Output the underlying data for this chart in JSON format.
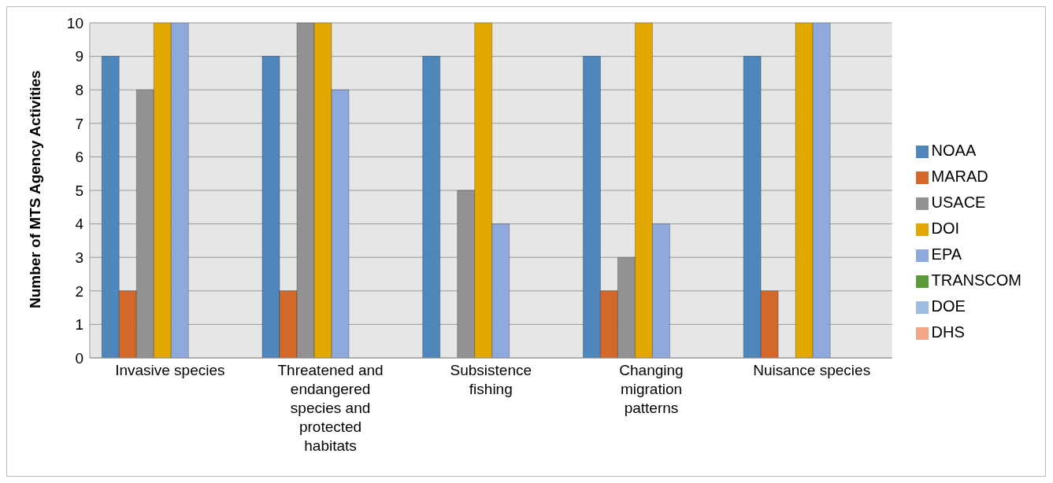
{
  "chart_data": {
    "type": "bar",
    "ylabel": "Number of MTS Agency Activities",
    "categories": [
      "Invasive species",
      "Threatened and endangered species and protected habitats",
      "Subsistence fishing",
      "Changing migration patterns",
      "Nuisance species"
    ],
    "series": [
      {
        "name": "NOAA",
        "color": "#4f86bb",
        "values": [
          9,
          9,
          9,
          9,
          9
        ]
      },
      {
        "name": "MARAD",
        "color": "#d2692a",
        "values": [
          2,
          2,
          0,
          2,
          2
        ]
      },
      {
        "name": "USACE",
        "color": "#929292",
        "values": [
          8,
          10,
          5,
          3,
          0
        ]
      },
      {
        "name": "DOI",
        "color": "#e2a800",
        "values": [
          10,
          10,
          10,
          10,
          10
        ]
      },
      {
        "name": "EPA",
        "color": "#8eaadc",
        "values": [
          10,
          8,
          4,
          4,
          10
        ]
      },
      {
        "name": "TRANSCOM",
        "color": "#5a9a3a",
        "values": [
          0,
          0,
          0,
          0,
          0
        ]
      },
      {
        "name": "DOE",
        "color": "#9cbde0",
        "values": [
          0,
          0,
          0,
          0,
          0
        ]
      },
      {
        "name": "DHS",
        "color": "#f2a687",
        "values": [
          0,
          0,
          0,
          0,
          0
        ]
      }
    ],
    "ylim": [
      0,
      10
    ],
    "yticks": [
      0,
      1,
      2,
      3,
      4,
      5,
      6,
      7,
      8,
      9,
      10
    ],
    "grid": "y",
    "legend": "right"
  }
}
